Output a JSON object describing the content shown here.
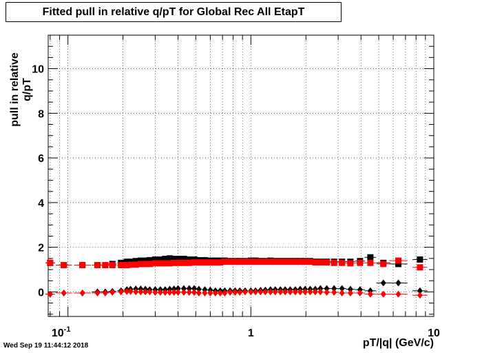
{
  "chart_data": {
    "type": "scatter",
    "title": "Fitted pull in relative q/pT for Global Rec All EtapT",
    "xlabel": "pT/|q| (GeV/c)",
    "ylabel": "pull in relative q/pT",
    "x_scale": "log",
    "xlim": [
      0.078,
      10
    ],
    "ylim": [
      -1.1,
      11.5
    ],
    "grid": true,
    "x_tick_labels": [
      "10^-1",
      "1",
      "10"
    ],
    "y_tick_labels": [
      "0",
      "2",
      "4",
      "6",
      "8",
      "10"
    ],
    "series": [
      {
        "color": "#000000",
        "marker": "square",
        "x": [
          0.08,
          0.095,
          0.12,
          0.145,
          0.16,
          0.175,
          0.195,
          0.21,
          0.22,
          0.235,
          0.25,
          0.265,
          0.28,
          0.3,
          0.32,
          0.34,
          0.36,
          0.38,
          0.4,
          0.43,
          0.46,
          0.49,
          0.52,
          0.56,
          0.6,
          0.64,
          0.68,
          0.72,
          0.77,
          0.82,
          0.87,
          0.93,
          1.0,
          1.06,
          1.13,
          1.2,
          1.28,
          1.36,
          1.45,
          1.54,
          1.64,
          1.75,
          1.86,
          1.98,
          2.11,
          2.25,
          2.4,
          2.6,
          2.85,
          3.15,
          3.5,
          3.95,
          4.5,
          5.3,
          6.4,
          8.4
        ],
        "y": [
          1.3,
          1.2,
          1.2,
          1.2,
          1.2,
          1.25,
          1.3,
          1.35,
          1.35,
          1.38,
          1.4,
          1.4,
          1.42,
          1.45,
          1.45,
          1.48,
          1.5,
          1.48,
          1.48,
          1.48,
          1.45,
          1.45,
          1.42,
          1.42,
          1.4,
          1.4,
          1.4,
          1.4,
          1.38,
          1.38,
          1.38,
          1.38,
          1.4,
          1.4,
          1.38,
          1.38,
          1.4,
          1.38,
          1.38,
          1.38,
          1.38,
          1.38,
          1.38,
          1.38,
          1.38,
          1.35,
          1.35,
          1.35,
          1.35,
          1.35,
          1.35,
          1.38,
          1.55,
          1.3,
          1.25,
          1.45
        ]
      },
      {
        "color": "#ff0000",
        "marker": "square",
        "x": [
          0.08,
          0.095,
          0.12,
          0.145,
          0.16,
          0.175,
          0.195,
          0.21,
          0.22,
          0.235,
          0.25,
          0.265,
          0.28,
          0.3,
          0.32,
          0.34,
          0.36,
          0.38,
          0.4,
          0.43,
          0.46,
          0.49,
          0.52,
          0.56,
          0.6,
          0.64,
          0.68,
          0.72,
          0.77,
          0.82,
          0.87,
          0.93,
          1.0,
          1.06,
          1.13,
          1.2,
          1.28,
          1.36,
          1.45,
          1.54,
          1.64,
          1.75,
          1.86,
          1.98,
          2.11,
          2.25,
          2.4,
          2.6,
          2.85,
          3.15,
          3.5,
          3.95,
          4.5,
          5.3,
          6.4,
          8.4
        ],
        "y": [
          1.3,
          1.2,
          1.2,
          1.2,
          1.2,
          1.2,
          1.2,
          1.2,
          1.22,
          1.22,
          1.25,
          1.25,
          1.25,
          1.28,
          1.28,
          1.28,
          1.28,
          1.3,
          1.3,
          1.3,
          1.3,
          1.32,
          1.32,
          1.32,
          1.32,
          1.32,
          1.32,
          1.35,
          1.35,
          1.35,
          1.35,
          1.35,
          1.35,
          1.35,
          1.35,
          1.35,
          1.35,
          1.35,
          1.35,
          1.35,
          1.35,
          1.35,
          1.35,
          1.35,
          1.35,
          1.32,
          1.32,
          1.32,
          1.3,
          1.3,
          1.28,
          1.3,
          1.3,
          1.25,
          1.4,
          1.1
        ]
      },
      {
        "color": "#000000",
        "marker": "diamond",
        "x": [
          0.08,
          0.095,
          0.12,
          0.145,
          0.16,
          0.175,
          0.195,
          0.21,
          0.22,
          0.235,
          0.25,
          0.265,
          0.28,
          0.3,
          0.32,
          0.34,
          0.36,
          0.38,
          0.4,
          0.43,
          0.46,
          0.49,
          0.52,
          0.56,
          0.6,
          0.64,
          0.68,
          0.72,
          0.77,
          0.82,
          0.87,
          0.93,
          1.0,
          1.06,
          1.13,
          1.2,
          1.28,
          1.36,
          1.45,
          1.54,
          1.64,
          1.75,
          1.86,
          1.98,
          2.11,
          2.25,
          2.4,
          2.6,
          2.85,
          3.15,
          3.5,
          3.95,
          4.5,
          5.3,
          6.4,
          8.4
        ],
        "y": [
          -0.1,
          -0.05,
          -0.05,
          0.0,
          0.0,
          0.02,
          0.05,
          0.1,
          0.12,
          0.13,
          0.13,
          0.12,
          0.1,
          0.1,
          0.1,
          0.1,
          0.12,
          0.13,
          0.15,
          0.15,
          0.15,
          0.15,
          0.12,
          0.1,
          0.08,
          0.05,
          0.05,
          0.05,
          0.05,
          0.05,
          0.05,
          0.05,
          0.05,
          0.05,
          0.07,
          0.08,
          0.1,
          0.1,
          0.1,
          0.1,
          0.1,
          0.1,
          0.12,
          0.12,
          0.12,
          0.12,
          0.15,
          0.15,
          0.15,
          0.15,
          0.12,
          0.1,
          0.05,
          0.4,
          0.4,
          0.05
        ]
      },
      {
        "color": "#ff0000",
        "marker": "diamond",
        "x": [
          0.08,
          0.095,
          0.12,
          0.145,
          0.16,
          0.175,
          0.195,
          0.21,
          0.22,
          0.235,
          0.25,
          0.265,
          0.28,
          0.3,
          0.32,
          0.34,
          0.36,
          0.38,
          0.4,
          0.43,
          0.46,
          0.49,
          0.52,
          0.56,
          0.6,
          0.64,
          0.68,
          0.72,
          0.77,
          0.82,
          0.87,
          0.93,
          1.0,
          1.06,
          1.13,
          1.2,
          1.28,
          1.36,
          1.45,
          1.54,
          1.64,
          1.75,
          1.86,
          1.98,
          2.11,
          2.25,
          2.4,
          2.6,
          2.85,
          3.15,
          3.5,
          3.95,
          4.5,
          5.3,
          6.4,
          8.4
        ],
        "y": [
          -0.1,
          -0.05,
          -0.05,
          -0.05,
          -0.05,
          -0.02,
          0.0,
          0.02,
          0.02,
          0.0,
          0.0,
          0.0,
          0.0,
          -0.02,
          -0.02,
          -0.02,
          -0.02,
          -0.02,
          -0.02,
          -0.02,
          -0.02,
          -0.02,
          -0.05,
          -0.05,
          -0.05,
          -0.05,
          -0.05,
          -0.05,
          -0.02,
          -0.02,
          -0.02,
          0.0,
          0.0,
          0.0,
          0.0,
          0.0,
          0.0,
          0.0,
          0.0,
          0.0,
          0.0,
          0.0,
          0.0,
          0.0,
          0.0,
          0.0,
          0.0,
          -0.02,
          -0.02,
          -0.05,
          -0.05,
          -0.05,
          -0.1,
          -0.1,
          -0.1,
          -0.15
        ]
      }
    ]
  },
  "timestamp": "Wed Sep 19 11:44:12 2018"
}
